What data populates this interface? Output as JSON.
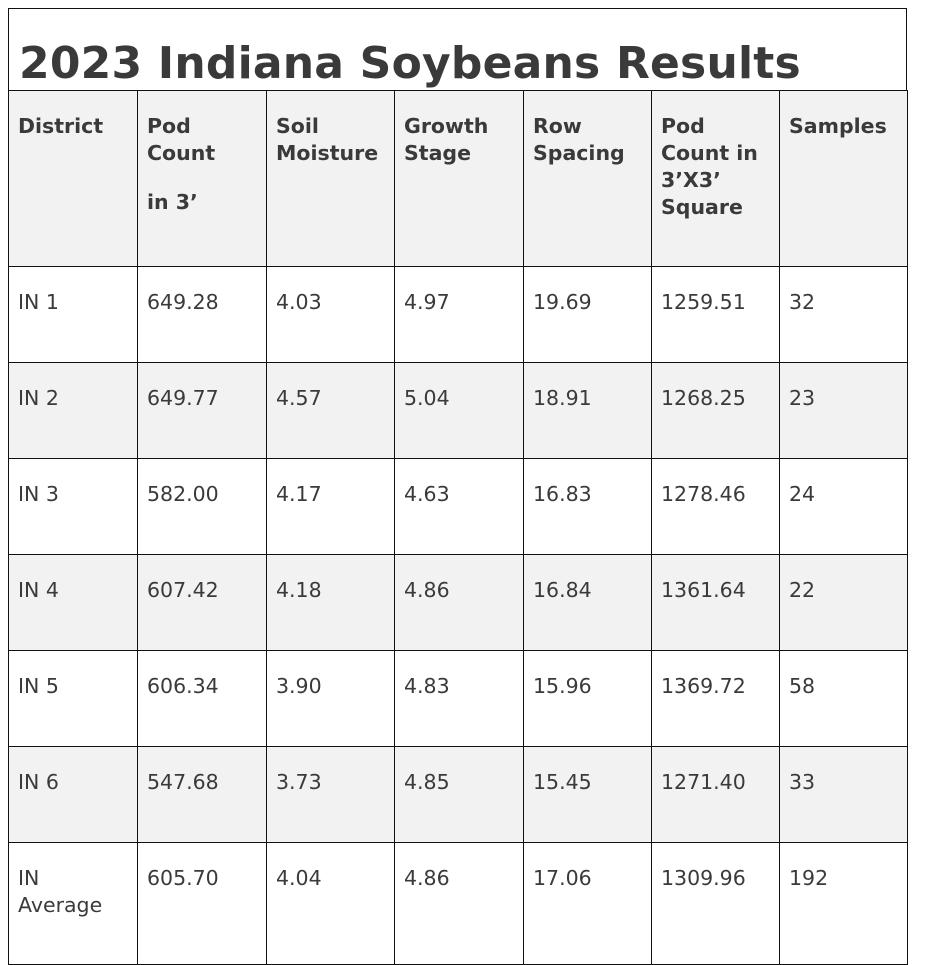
{
  "title": "2023 Indiana Soybeans Results",
  "table": {
    "headers": [
      [
        "District"
      ],
      [
        "Pod",
        "Count",
        "",
        "in 3’"
      ],
      [
        "Soil",
        "Moisture"
      ],
      [
        "Growth",
        "Stage"
      ],
      [
        "Row",
        "Spacing"
      ],
      [
        "Pod",
        "Count in",
        "3’X3’",
        "Square"
      ],
      [
        "Samples"
      ]
    ],
    "rows": [
      [
        "IN 1",
        "649.28",
        "4.03",
        "4.97",
        "19.69",
        "1259.51",
        "32"
      ],
      [
        "IN 2",
        "649.77",
        "4.57",
        "5.04",
        "18.91",
        "1268.25",
        "23"
      ],
      [
        "IN 3",
        "582.00",
        "4.17",
        "4.63",
        "16.83",
        "1278.46",
        "24"
      ],
      [
        "IN 4",
        "607.42",
        "4.18",
        "4.86",
        "16.84",
        "1361.64",
        "22"
      ],
      [
        "IN 5",
        "606.34",
        "3.90",
        "4.83",
        "15.96",
        "1369.72",
        "58"
      ],
      [
        "IN 6",
        "547.68",
        "3.73",
        "4.85",
        "15.45",
        "1271.40",
        "33"
      ]
    ],
    "average_row": {
      "district_lines": [
        "IN",
        "Average"
      ],
      "values": [
        "605.70",
        "4.04",
        "4.86",
        "17.06",
        "1309.96",
        "192"
      ]
    }
  }
}
